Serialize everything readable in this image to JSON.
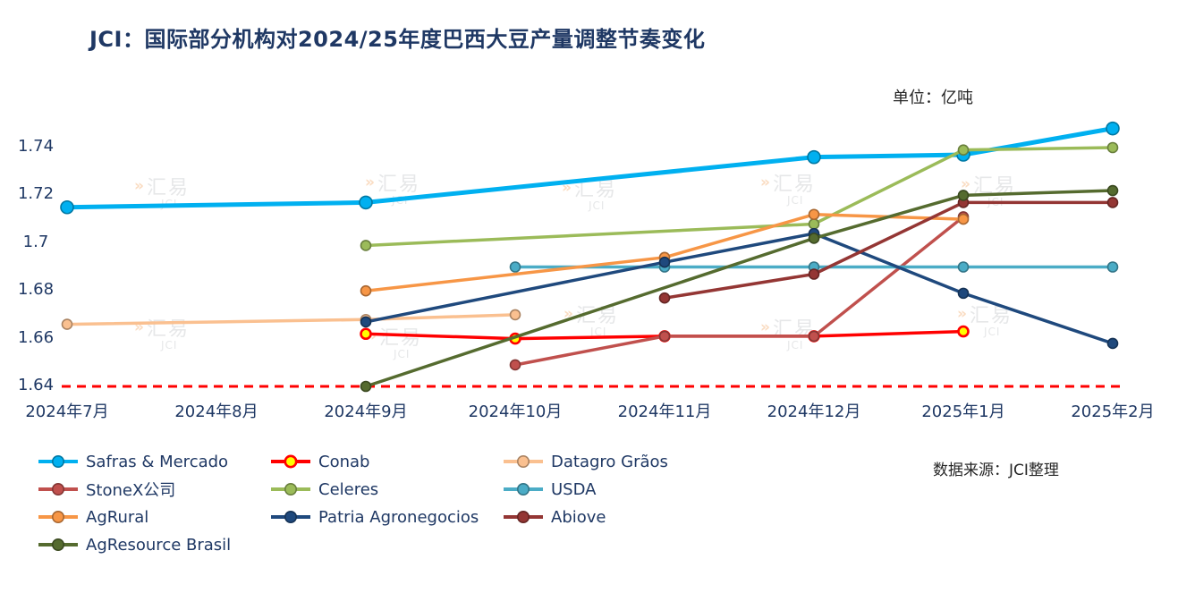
{
  "page": {
    "unit_label": "单位：亿吨",
    "source_label": "数据来源：JCI整理"
  },
  "watermark": {
    "text_cn": "汇易",
    "text_en": "JCI"
  },
  "chart_data": {
    "type": "line",
    "title": "JCI：国际部分机构对2024/25年度巴西大豆产量调整节奏变化",
    "xlabel": "",
    "ylabel": "",
    "categories": [
      "2024年7月",
      "2024年8月",
      "2024年9月",
      "2024年10月",
      "2024年11月",
      "2024年12月",
      "2025年1月",
      "2025年2月"
    ],
    "y_ticks": [
      "1.64",
      "1.66",
      "1.68",
      "1.7",
      "1.72",
      "1.74"
    ],
    "ylim": [
      1.64,
      1.74
    ],
    "grid": false,
    "legend_position": "bottom",
    "baseline": {
      "value": 1.64,
      "style": "dashed",
      "color": "#FF0000"
    },
    "series": [
      {
        "name": "Safras & Mercado",
        "color": "#00B0F0",
        "thick": true,
        "values": [
          1.715,
          null,
          1.717,
          null,
          null,
          1.736,
          1.737,
          1.748
        ]
      },
      {
        "name": "Conab",
        "color": "#FF0000",
        "marker_fill": "#FFFF00",
        "values": [
          null,
          null,
          1.662,
          1.66,
          1.661,
          1.661,
          1.663,
          null
        ]
      },
      {
        "name": "Datagro Grãos",
        "color": "#FAC090",
        "values": [
          1.666,
          null,
          1.668,
          1.67,
          null,
          null,
          null,
          null
        ]
      },
      {
        "name": "StoneX公司",
        "color": "#C0504D",
        "values": [
          null,
          null,
          null,
          1.649,
          1.661,
          1.661,
          1.711,
          null
        ]
      },
      {
        "name": "Celeres",
        "color": "#9BBB59",
        "values": [
          null,
          null,
          1.699,
          null,
          null,
          1.708,
          1.739,
          1.74
        ]
      },
      {
        "name": "USDA",
        "color": "#4BACC6",
        "values": [
          null,
          null,
          null,
          1.69,
          1.69,
          1.69,
          1.69,
          1.69
        ]
      },
      {
        "name": "AgRural",
        "color": "#F79646",
        "values": [
          null,
          null,
          1.68,
          null,
          1.694,
          1.712,
          1.71,
          null
        ]
      },
      {
        "name": "Patria Agronegocios",
        "color": "#1F497D",
        "values": [
          null,
          null,
          1.667,
          null,
          1.692,
          1.704,
          1.679,
          1.658
        ]
      },
      {
        "name": "Abiove",
        "color": "#943634",
        "values": [
          null,
          null,
          null,
          null,
          1.677,
          1.687,
          1.717,
          1.717
        ]
      },
      {
        "name": "AgResource Brasil",
        "color": "#556B2F",
        "values": [
          null,
          null,
          1.64,
          null,
          null,
          1.702,
          1.72,
          1.722
        ]
      }
    ]
  }
}
